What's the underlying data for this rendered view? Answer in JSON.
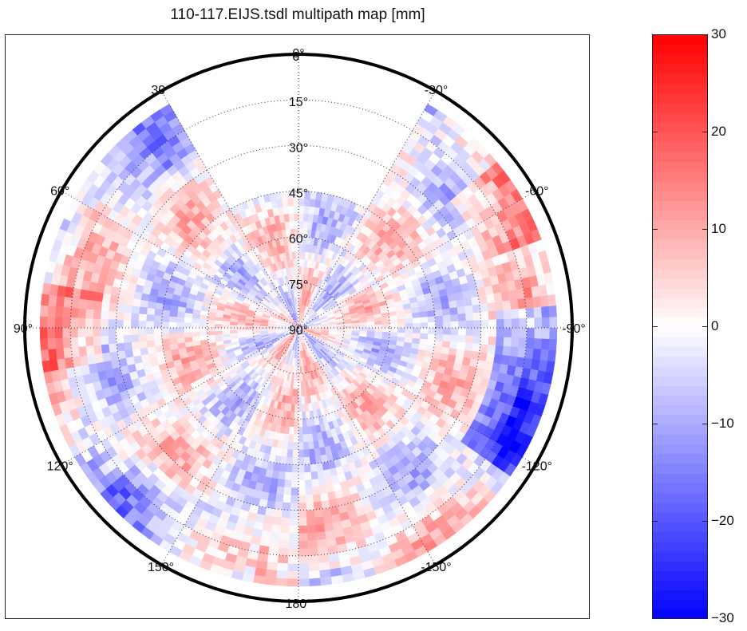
{
  "chart_data": {
    "type": "heatmap",
    "subtype": "polar-skyplot",
    "title": "110-117.EIJS.tsdl multipath map [mm]",
    "radial_axis": {
      "quantity": "elevation",
      "unit": "degrees",
      "tick_labels": [
        "0°",
        "15°",
        "30°",
        "45°",
        "60°",
        "75°",
        "90°"
      ],
      "values": [
        0,
        15,
        30,
        45,
        60,
        75,
        90
      ]
    },
    "angular_axis": {
      "quantity": "azimuth",
      "unit": "degrees",
      "tick_labels": [
        "0°",
        "30°",
        "60°",
        "90°",
        "120°",
        "150°",
        "180°",
        "-150°",
        "-120°",
        "-90°",
        "-60°",
        "-30°"
      ],
      "values": [
        0,
        30,
        60,
        90,
        120,
        150,
        180,
        -150,
        -120,
        -90,
        -60,
        -30
      ],
      "direction": "counter-clockwise from top"
    },
    "grid": true,
    "colorbar": {
      "position": "right",
      "range": [
        -30,
        30
      ],
      "ticks": [
        30,
        20,
        10,
        0,
        -10,
        -20,
        -30
      ],
      "tick_labels": [
        "30",
        "20",
        "10",
        "0",
        "−10",
        "−20",
        "−30"
      ],
      "colormap": "blue-white-red",
      "low_color": "#0000ff",
      "mid_color": "#ffffff",
      "high_color": "#ff0000"
    },
    "data_coverage": {
      "elevation_range": [
        5,
        90
      ],
      "gap_azimuth_range": [
        -30,
        30
      ],
      "gap_elevation_range": [
        0,
        45
      ]
    },
    "data_description": "multipath residuals mostly within ±10 mm; stronger blue (about −20 to −30) near horizon at azimuths -90 to -120 and 30; stronger red (about +15 to +20) near azimuths -60 and 90"
  }
}
